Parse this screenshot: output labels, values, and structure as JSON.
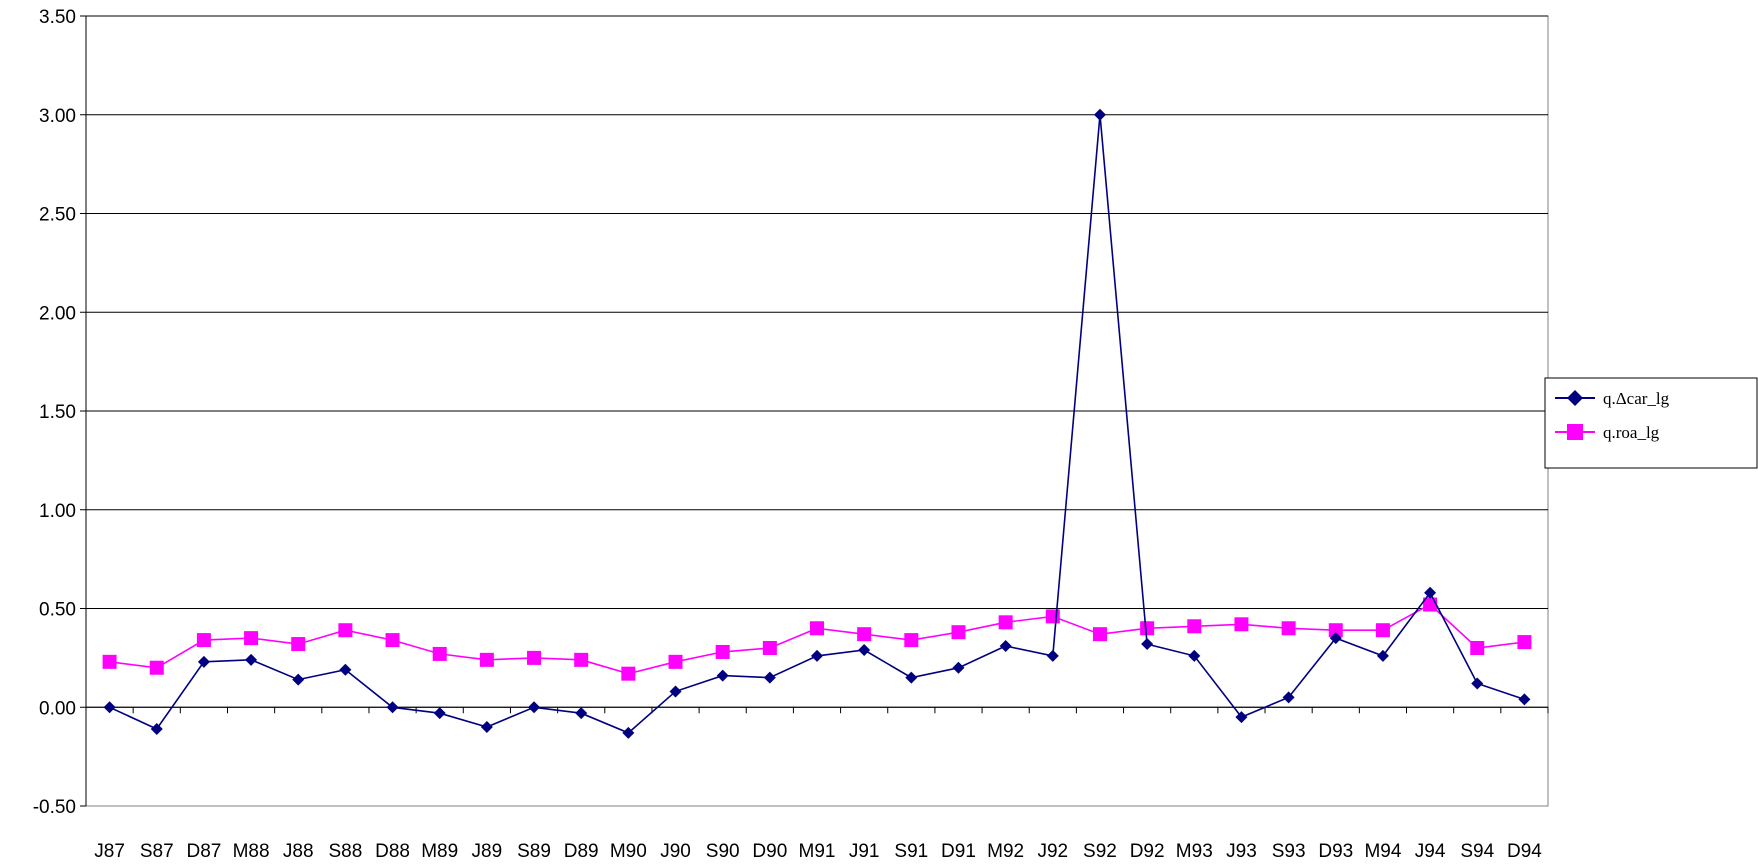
{
  "chart_data": {
    "type": "line",
    "categories": [
      "J87",
      "S87",
      "D87",
      "M88",
      "J88",
      "S88",
      "D88",
      "M89",
      "J89",
      "S89",
      "D89",
      "M90",
      "J90",
      "S90",
      "D90",
      "M91",
      "J91",
      "S91",
      "D91",
      "M92",
      "J92",
      "S92",
      "D92",
      "M93",
      "J93",
      "S93",
      "D93",
      "M94",
      "J94",
      "S94",
      "D94"
    ],
    "series": [
      {
        "name": "q.Δcar_lg",
        "color": "#000080",
        "marker": "diamond",
        "values": [
          0.0,
          -0.11,
          0.23,
          0.24,
          0.14,
          0.19,
          0.0,
          -0.03,
          -0.1,
          0.0,
          -0.03,
          -0.13,
          0.08,
          0.16,
          0.15,
          0.26,
          0.29,
          0.15,
          0.2,
          0.31,
          0.26,
          3.0,
          0.32,
          0.26,
          -0.05,
          0.05,
          0.35,
          0.26,
          0.58,
          0.12,
          0.04
        ]
      },
      {
        "name": "q.roa_lg",
        "color": "#ff00ff",
        "marker": "square",
        "values": [
          0.23,
          0.2,
          0.34,
          0.35,
          0.32,
          0.39,
          0.34,
          0.27,
          0.24,
          0.25,
          0.24,
          0.17,
          0.23,
          0.28,
          0.3,
          0.4,
          0.37,
          0.34,
          0.38,
          0.43,
          0.46,
          0.37,
          0.4,
          0.41,
          0.42,
          0.4,
          0.39,
          0.39,
          0.52,
          0.3,
          0.33
        ]
      }
    ],
    "ylim": [
      -0.5,
      3.5
    ],
    "y_ticks": [
      "3.50",
      "3.00",
      "2.50",
      "2.00",
      "1.50",
      "1.00",
      "0.50",
      "0.00",
      "-0.50"
    ],
    "grid": true,
    "legend": "right",
    "xlabel": "",
    "ylabel": "",
    "title": ""
  }
}
